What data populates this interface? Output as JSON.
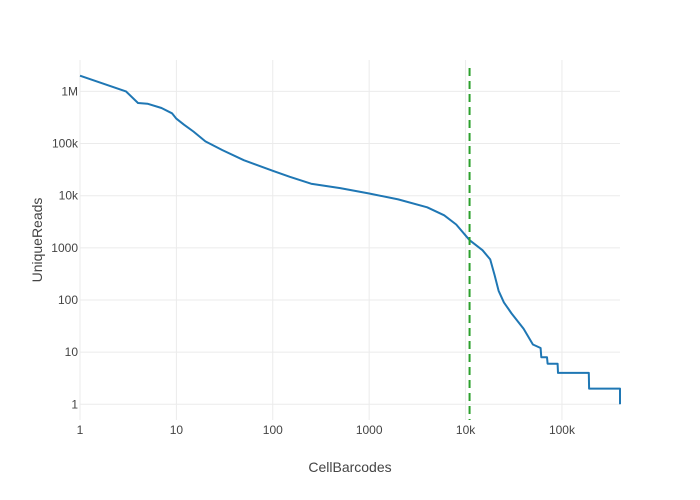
{
  "chart_data": {
    "type": "line",
    "xlabel": "CellBarcodes",
    "ylabel": "UniqueReads",
    "x_scale": "log",
    "y_scale": "log",
    "xlim": [
      1,
      400000
    ],
    "ylim": [
      0.5,
      4000000
    ],
    "grid": true,
    "x_ticks": [
      {
        "value": 1,
        "label": "1"
      },
      {
        "value": 10,
        "label": "10"
      },
      {
        "value": 100,
        "label": "100"
      },
      {
        "value": 1000,
        "label": "1000"
      },
      {
        "value": 10000,
        "label": "10k"
      },
      {
        "value": 100000,
        "label": "100k"
      }
    ],
    "y_ticks": [
      {
        "value": 1,
        "label": "1"
      },
      {
        "value": 10,
        "label": "10"
      },
      {
        "value": 100,
        "label": "100"
      },
      {
        "value": 1000,
        "label": "1000"
      },
      {
        "value": 10000,
        "label": "10k"
      },
      {
        "value": 100000,
        "label": "100k"
      },
      {
        "value": 1000000,
        "label": "1M"
      }
    ],
    "series": [
      {
        "color": "#1f77b4",
        "x": [
          1,
          3,
          4,
          5,
          7,
          9,
          10,
          12,
          15,
          20,
          30,
          50,
          100,
          150,
          250,
          500,
          1000,
          2000,
          4000,
          6000,
          8000,
          11000,
          15000,
          18000,
          20000,
          22000,
          25000,
          30000,
          40000,
          50000,
          60000,
          61000,
          70000,
          71000,
          90000,
          91000,
          130000,
          131000,
          190000,
          191000,
          400000,
          400000
        ],
        "y": [
          2000000,
          1000000,
          600000,
          580000,
          480000,
          380000,
          300000,
          230000,
          170000,
          110000,
          75000,
          48000,
          30000,
          23000,
          17000,
          14000,
          11000,
          8500,
          6000,
          4200,
          2800,
          1400,
          900,
          600,
          300,
          150,
          90,
          55,
          28,
          14,
          12,
          8,
          8,
          6,
          6,
          4,
          4,
          4,
          4,
          2,
          2,
          1
        ]
      }
    ],
    "threshold": {
      "x": 11000,
      "color": "#2ca02c",
      "style": "dashed"
    }
  }
}
